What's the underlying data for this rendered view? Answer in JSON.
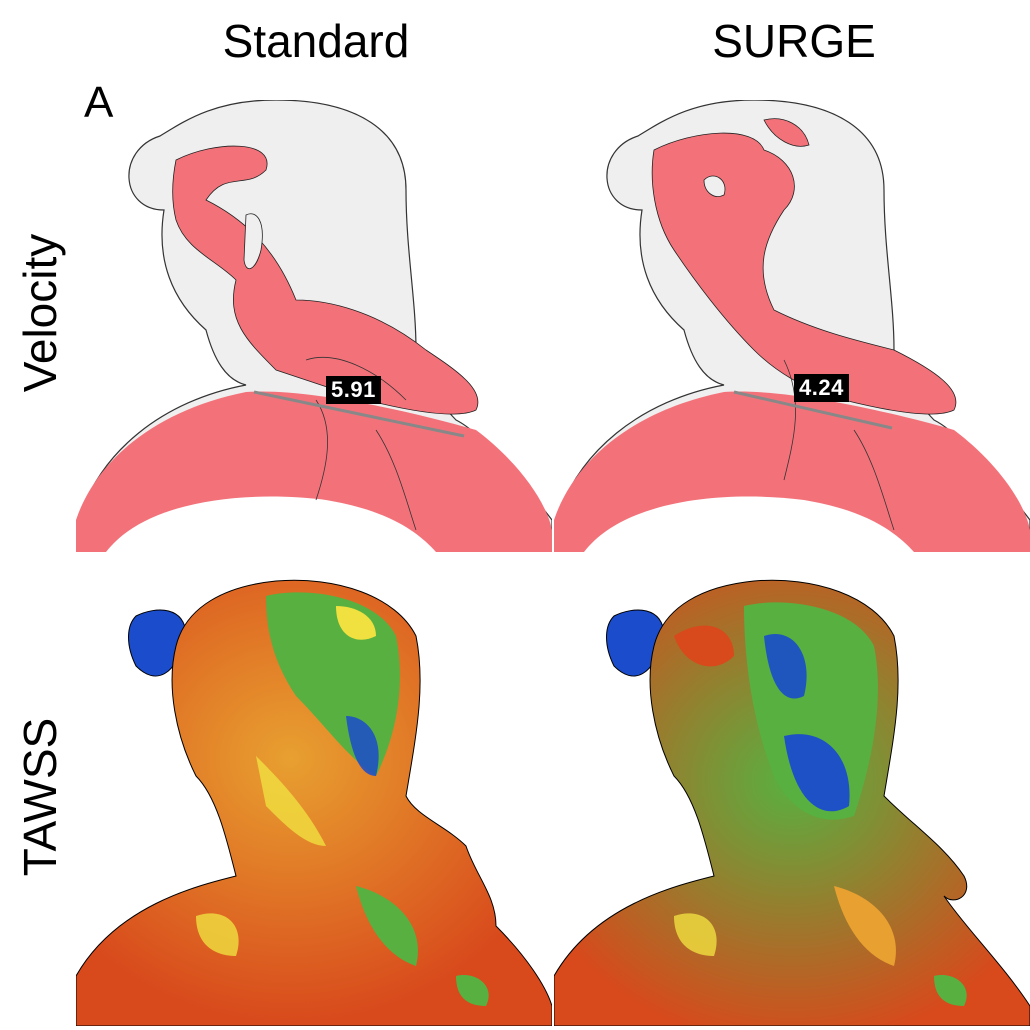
{
  "columns": {
    "left": "Standard",
    "right": "SURGE"
  },
  "rows": {
    "top": "Velocity",
    "bottom": "TAWSS"
  },
  "panel_letter": "A",
  "values": {
    "standard": "5.91",
    "surge": "4.24"
  },
  "colors": {
    "velocity_fill": "#f3727a",
    "vessel_shell": "#eeeeee",
    "tawss_red": "#d8491c",
    "tawss_orange": "#e8a030",
    "tawss_yellow": "#f0e040",
    "tawss_green": "#58b040",
    "tawss_blue": "#1a4ccc"
  }
}
